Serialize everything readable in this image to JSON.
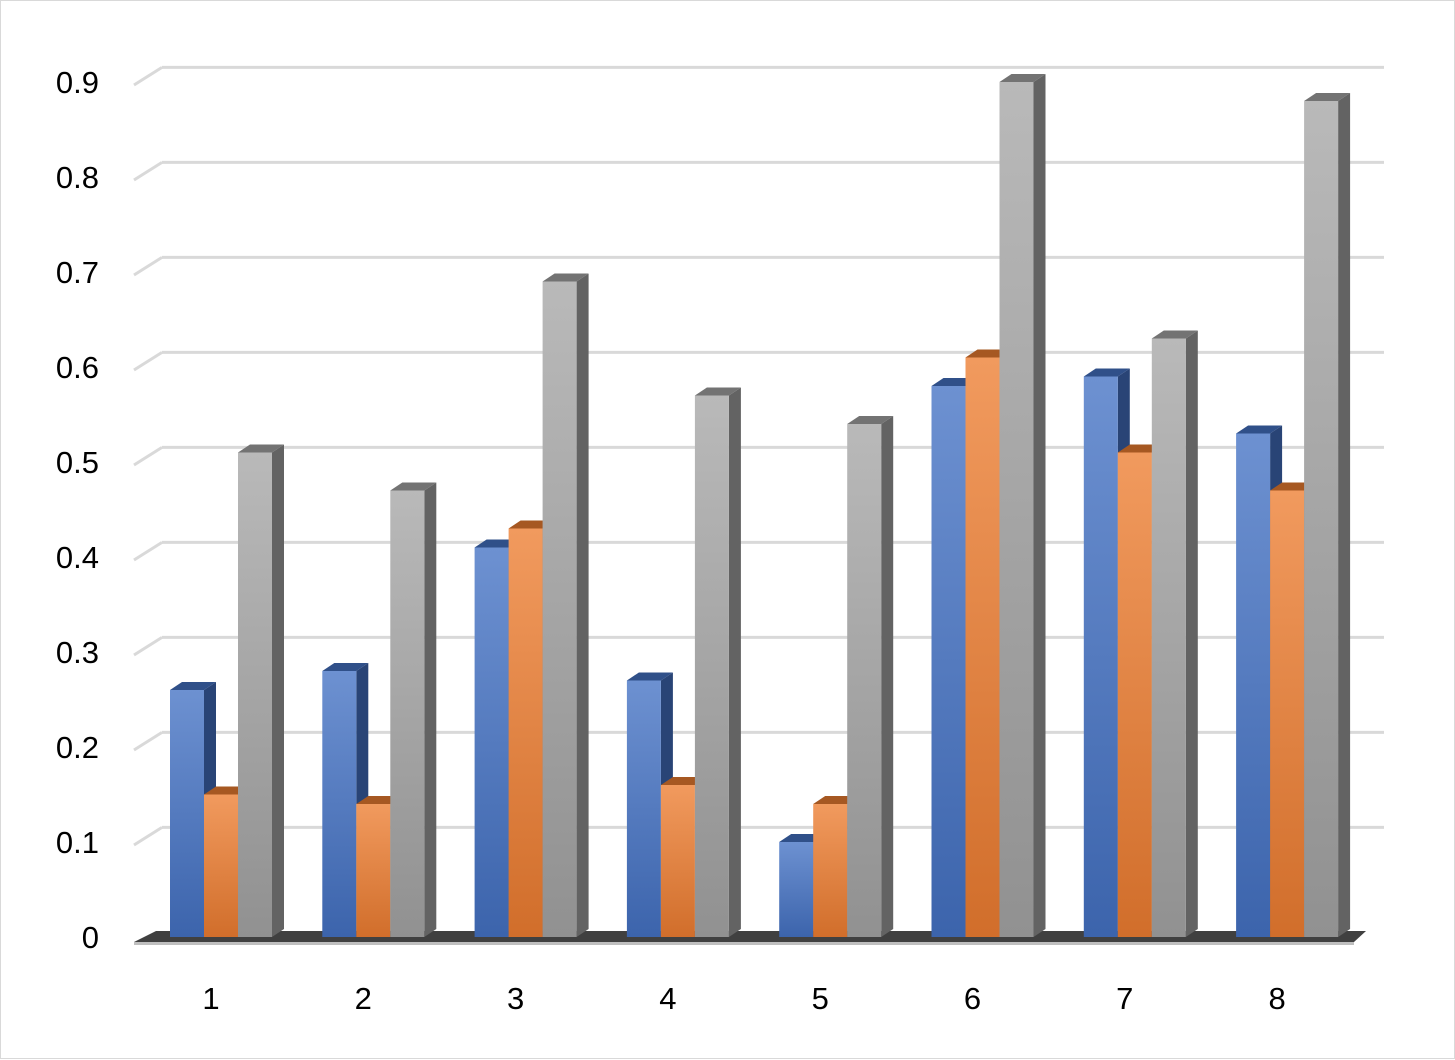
{
  "chart_data": {
    "type": "bar",
    "style": "3d-clustered-column",
    "title": "",
    "xlabel": "",
    "ylabel": "",
    "categories": [
      "1",
      "2",
      "3",
      "4",
      "5",
      "6",
      "7",
      "8"
    ],
    "series": [
      {
        "values": [
          0.26,
          0.28,
          0.41,
          0.27,
          0.1,
          0.58,
          0.59,
          0.53
        ],
        "color": "#4472c4"
      },
      {
        "values": [
          0.15,
          0.14,
          0.43,
          0.16,
          0.14,
          0.61,
          0.51,
          0.47
        ],
        "color": "#ed7d31"
      },
      {
        "values": [
          0.51,
          0.47,
          0.69,
          0.57,
          0.54,
          0.9,
          0.63,
          0.88
        ],
        "color": "#a5a5a5"
      }
    ],
    "ylim": [
      0,
      0.9
    ],
    "yticks": [
      "0",
      "0.1",
      "0.2",
      "0.3",
      "0.4",
      "0.5",
      "0.6",
      "0.7",
      "0.8",
      "0.9"
    ],
    "grid": true,
    "legend": "none"
  }
}
